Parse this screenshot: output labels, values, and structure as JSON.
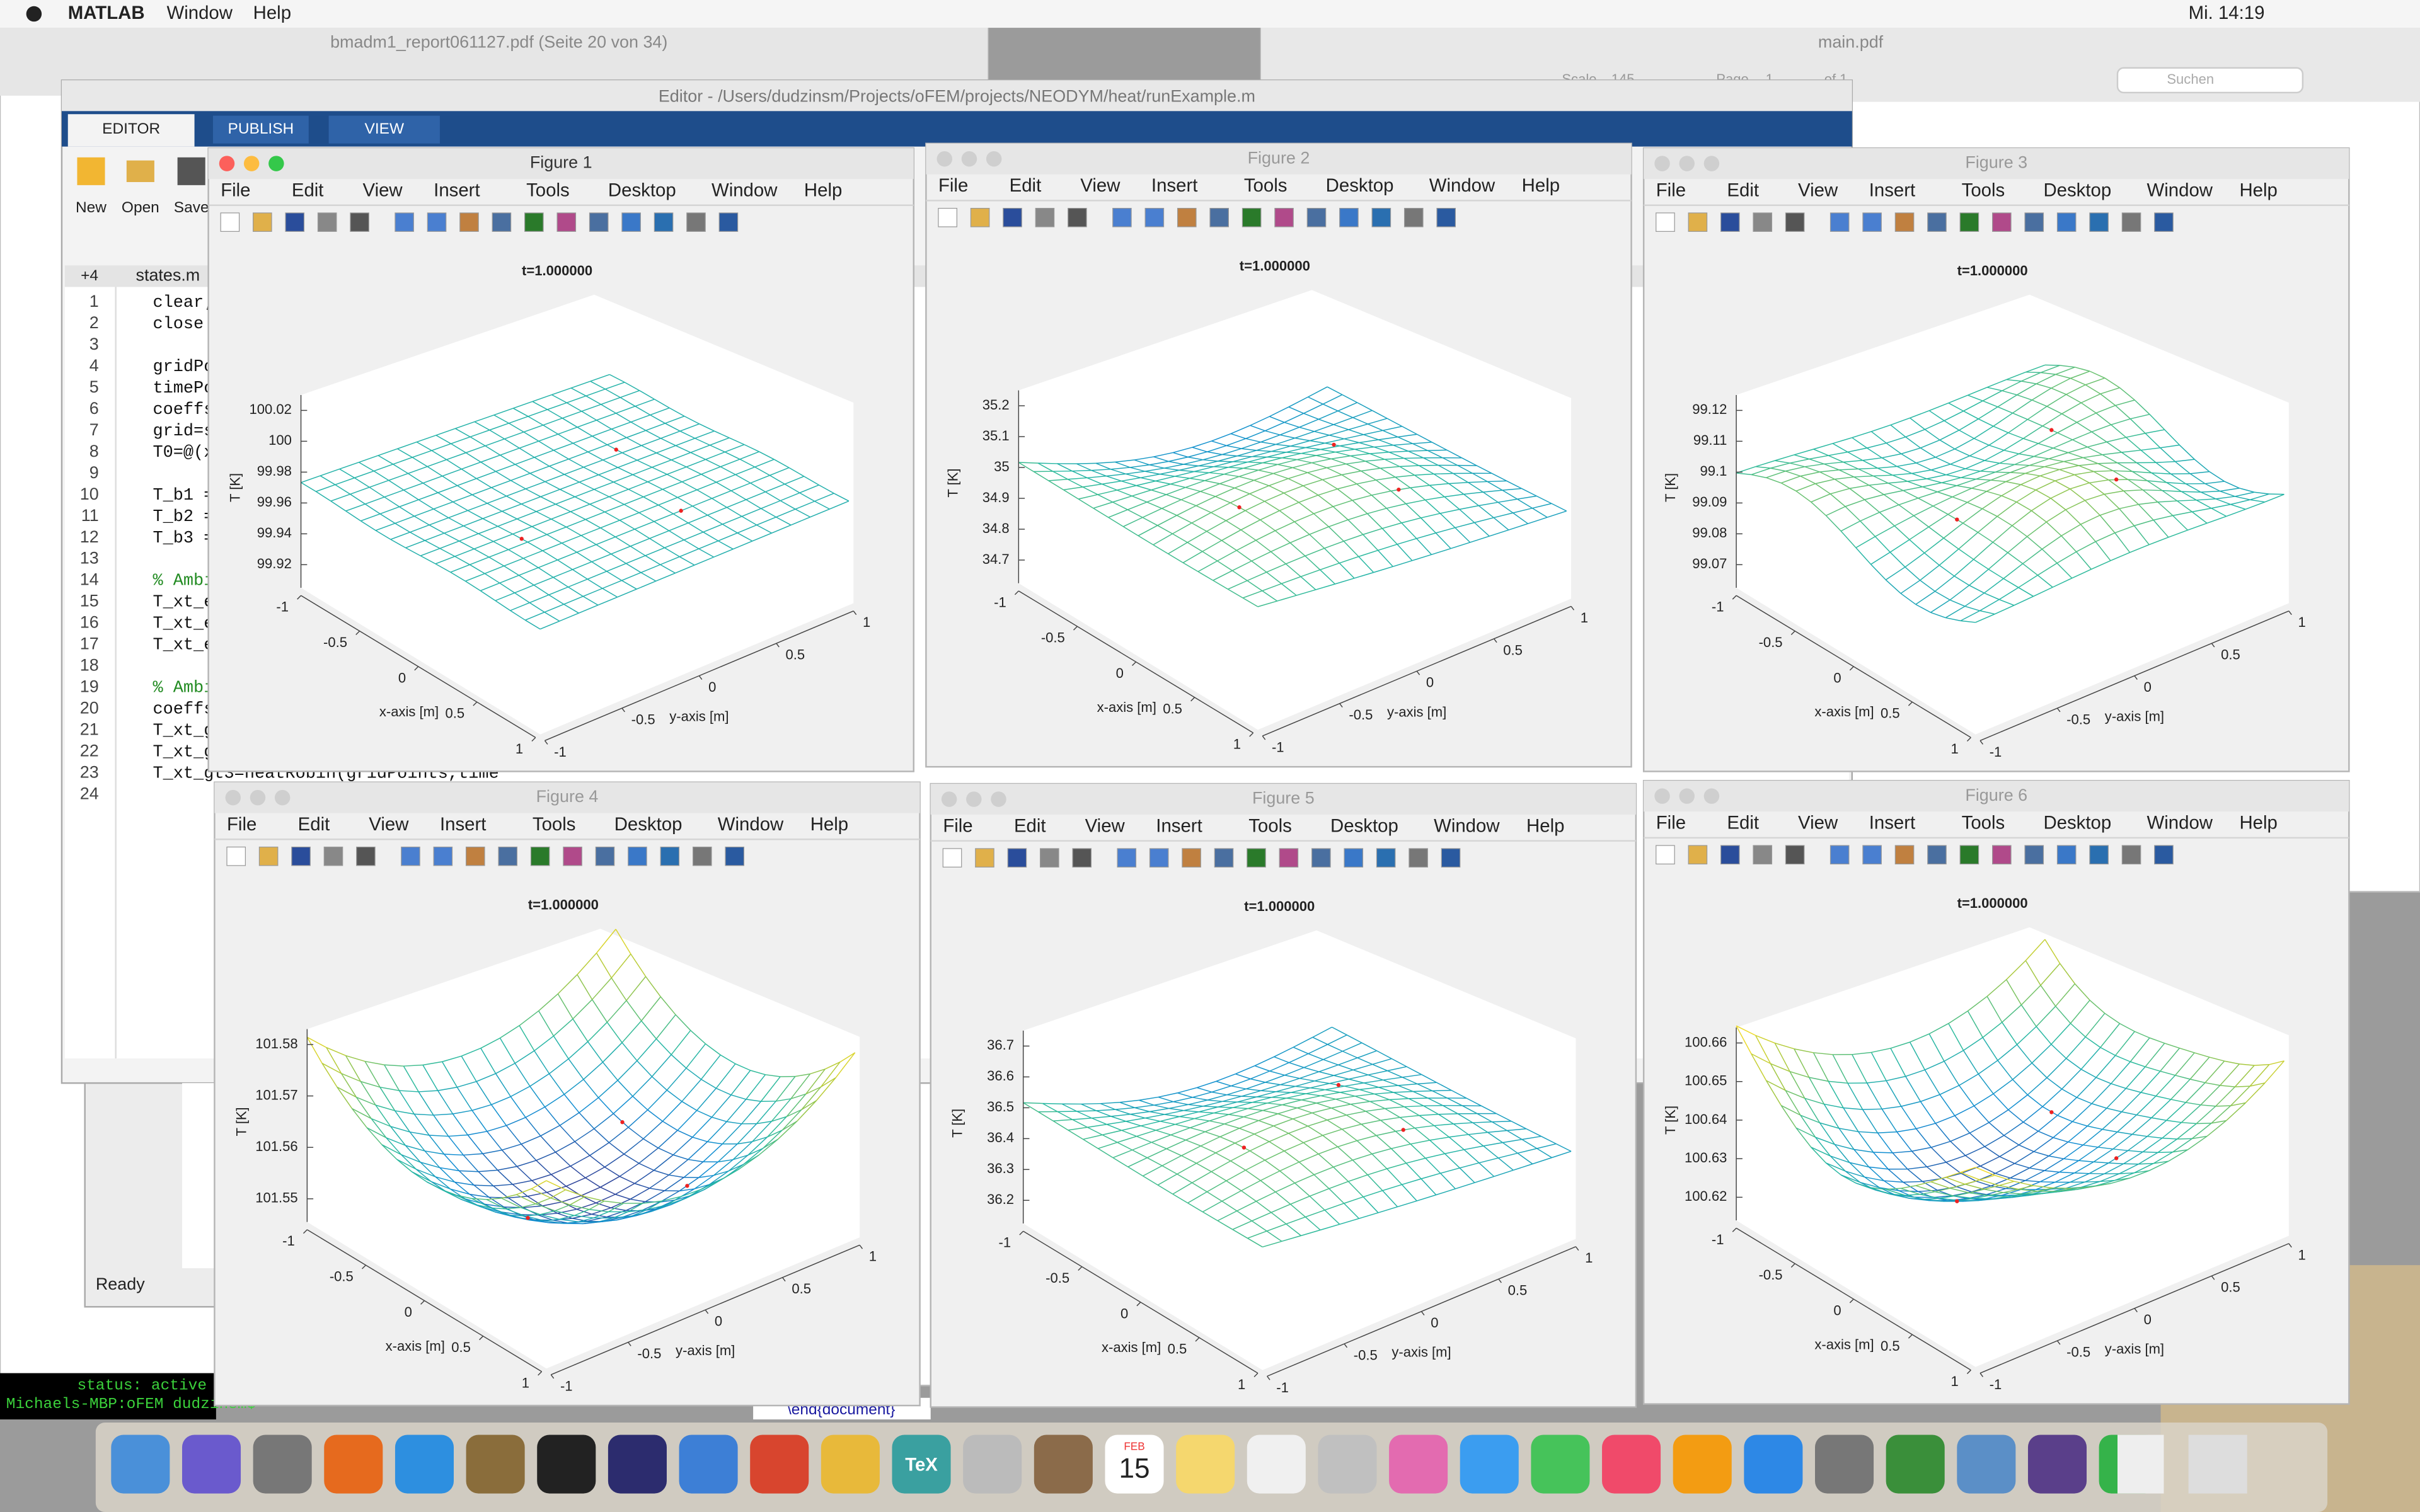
{
  "menubar": {
    "app": "MATLAB",
    "menus": [
      "Window",
      "Help"
    ],
    "clock": "Mi. 14:19"
  },
  "pdf_window": {
    "title": "bmadm1_report061127.pdf (Seite 20 von 34)"
  },
  "preview_window": {
    "title": "main.pdf",
    "scale_label": "Scale",
    "scale": 145,
    "page_label": "Page",
    "page": 1,
    "of": "of 1",
    "search": "Suchen"
  },
  "editor": {
    "title": "Editor - /Users/dudzinsm/Projects/oFEM/projects/NEODYM/heat/runExample.m",
    "tabs": [
      "EDITOR",
      "PUBLISH",
      "VIEW"
    ],
    "toolbar": [
      "New",
      "Open",
      "Save"
    ],
    "file_tab": "states.m",
    "tab_count": "+4",
    "code_lines": [
      {
        "n": 1,
        "text": "clear;"
      },
      {
        "n": 2,
        "text": "close"
      },
      {
        "n": 3
      },
      {
        "n": 4,
        "text": "gridPo"
      },
      {
        "n": 5,
        "text": "timePo"
      },
      {
        "n": 6,
        "text": "coeffs"
      },
      {
        "n": 7,
        "text": "grid=s"
      },
      {
        "n": 8,
        "text": "T0=@(x"
      },
      {
        "n": 9
      },
      {
        "n": 10,
        "text": "T_b1 ="
      },
      {
        "n": 11,
        "text": "T_b2 ="
      },
      {
        "n": 12,
        "text": "T_b3 ="
      },
      {
        "n": 13
      },
      {
        "n": 14,
        "text": "% Ambi"
      },
      {
        "n": 15,
        "text": "T_xt_e"
      },
      {
        "n": 16,
        "text": "T_xt_e"
      },
      {
        "n": 17,
        "text": "T_xt_e"
      },
      {
        "n": 18
      },
      {
        "n": 19,
        "text": "% Ambi"
      },
      {
        "n": 20,
        "text": "coeffs"
      },
      {
        "n": 21,
        "text": "T_xt_g"
      },
      {
        "n": 22,
        "text": "T_xt_g"
      },
      {
        "n": 23,
        "text": "T_xt_gt3=heatRobin(gridPoints,time"
      },
      {
        "n": 24
      }
    ]
  },
  "matlab_status": "Ready",
  "terminal": [
    "status: active",
    "Michaels-MBP:oFEM dudzinsm$"
  ],
  "latex_line": "\\end{document}",
  "dock": {
    "calendar_month": "FEB",
    "calendar_day": 15,
    "tex": "TeX"
  },
  "figure_menu": [
    "File",
    "Edit",
    "View",
    "Insert",
    "Tools",
    "Desktop",
    "Window",
    "Help"
  ],
  "figures": [
    {
      "title": "Figure 1",
      "plot_title": "t=1.000000",
      "zlabel": "T [K]",
      "xlabel": "x-axis [m]",
      "ylabel": "y-axis [m]",
      "zticks": [
        100.02,
        100,
        99.98,
        99.96,
        99.94,
        99.92
      ],
      "xticks": [
        -1,
        -0.5,
        0,
        0.5,
        1
      ],
      "yticks": [
        -1,
        -0.5,
        0,
        0.5,
        1
      ]
    },
    {
      "title": "Figure 2",
      "plot_title": "t=1.000000",
      "zlabel": "T [K]",
      "xlabel": "x-axis [m]",
      "ylabel": "y-axis [m]",
      "zticks": [
        35.2,
        35.1,
        35,
        34.9,
        34.8,
        34.7
      ],
      "xticks": [
        -1,
        -0.5,
        0,
        0.5,
        1
      ],
      "yticks": [
        -1,
        -0.5,
        0,
        0.5,
        1
      ]
    },
    {
      "title": "Figure 3",
      "plot_title": "t=1.000000",
      "zlabel": "T [K]",
      "xlabel": "x-axis [m]",
      "ylabel": "y-axis [m]",
      "zticks": [
        99.12,
        99.11,
        99.1,
        99.09,
        99.08,
        99.07
      ],
      "xticks": [
        -1,
        -0.5,
        0,
        0.5,
        1
      ],
      "yticks": [
        -1,
        -0.5,
        0,
        0.5,
        1
      ]
    },
    {
      "title": "Figure 4",
      "plot_title": "t=1.000000",
      "zlabel": "T [K]",
      "xlabel": "x-axis [m]",
      "ylabel": "y-axis [m]",
      "zticks": [
        101.58,
        101.57,
        101.56,
        101.55
      ],
      "xticks": [
        -1,
        -0.5,
        0,
        0.5,
        1
      ],
      "yticks": [
        -1,
        -0.5,
        0,
        0.5,
        1
      ]
    },
    {
      "title": "Figure 5",
      "plot_title": "t=1.000000",
      "zlabel": "T [K]",
      "xlabel": "x-axis [m]",
      "ylabel": "y-axis [m]",
      "zticks": [
        36.7,
        36.6,
        36.5,
        36.4,
        36.3,
        36.2
      ],
      "xticks": [
        -1,
        -0.5,
        0,
        0.5,
        1
      ],
      "yticks": [
        -1,
        -0.5,
        0,
        0.5,
        1
      ]
    },
    {
      "title": "Figure 6",
      "plot_title": "t=1.000000",
      "zlabel": "T [K]",
      "xlabel": "x-axis [m]",
      "ylabel": "y-axis [m]",
      "zticks": [
        100.66,
        100.65,
        100.64,
        100.63,
        100.62
      ],
      "xticks": [
        -1,
        -0.5,
        0,
        0.5,
        1
      ],
      "yticks": [
        -1,
        -0.5,
        0,
        0.5,
        1
      ]
    }
  ]
}
